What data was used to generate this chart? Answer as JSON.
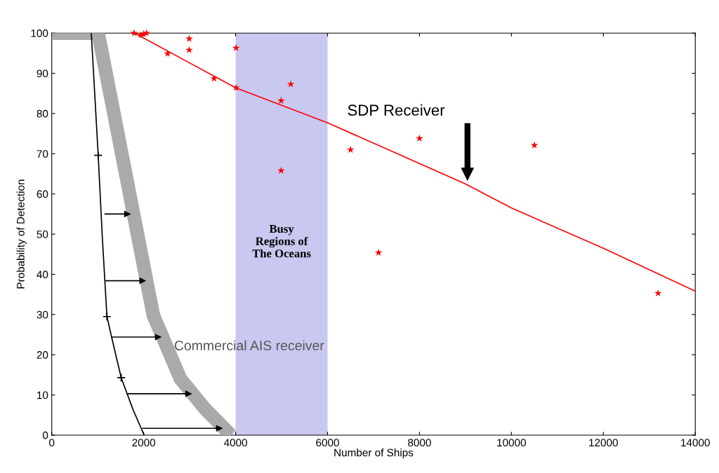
{
  "chart_data": {
    "type": "line",
    "xlabel": "Number of Ships",
    "ylabel": "Probability of Detection",
    "xlim": [
      0,
      14000
    ],
    "ylim": [
      0,
      100
    ],
    "xticks": [
      0,
      2000,
      4000,
      6000,
      8000,
      10000,
      12000,
      14000
    ],
    "yticks": [
      0,
      10,
      20,
      30,
      40,
      50,
      60,
      70,
      80,
      90,
      100
    ],
    "grid": false,
    "series": [
      {
        "color": "#aaaaaa",
        "x": [
          0,
          1010,
          2210,
          2800,
          3330,
          3900
        ],
        "values": [
          100,
          100,
          29.8,
          14,
          6.6,
          0
        ]
      },
      {
        "type": "line",
        "color": "#000000",
        "x": [
          860,
          1010,
          1100,
          1200,
          1330,
          1510,
          1770,
          2010
        ],
        "values": [
          100,
          69.6,
          49.2,
          29.5,
          23,
          14.3,
          6.3,
          0
        ]
      },
      {
        "type": "scatter",
        "color": "#000000",
        "marker": "cross",
        "x": [
          1010,
          1200,
          1510
        ],
        "values": [
          69.6,
          29.5,
          14.3
        ]
      },
      {
        "type": "line",
        "color": "#ff0000",
        "x": [
          1800,
          4000,
          6000,
          9000,
          10000,
          12000,
          14000
        ],
        "values": [
          100,
          86.4,
          77.7,
          62.5,
          56.5,
          46.5,
          35.8
        ]
      },
      {
        "type": "scatter",
        "color": "#ff0000",
        "marker": "star",
        "x": [
          1790,
          1940,
          2000,
          2060,
          2520,
          2990,
          2990,
          3530,
          4010,
          4010,
          5200,
          4990,
          4990,
          6500,
          8000,
          7110,
          10500,
          13190
        ],
        "values": [
          100,
          99.5,
          99.8,
          100,
          94.9,
          98.6,
          95.8,
          88.7,
          96.3,
          86.4,
          87.3,
          83.2,
          65.8,
          71.0,
          73.8,
          45.4,
          72.1,
          35.3
        ]
      },
      {
        "type": "line",
        "color": "#000000",
        "x": [
          1160,
          1650
        ],
        "values": [
          55,
          55
        ]
      },
      {
        "type": "line",
        "color": "#000000",
        "x": [
          1180,
          1980
        ],
        "values": [
          38.4,
          38.4
        ]
      },
      {
        "type": "line",
        "color": "#000000",
        "x": [
          1300,
          2320
        ],
        "values": [
          24.4,
          24.4
        ]
      },
      {
        "type": "line",
        "color": "#000000",
        "x": [
          1650,
          2980
        ],
        "values": [
          10.3,
          10.3
        ]
      },
      {
        "type": "line",
        "color": "#000000",
        "x": [
          1980,
          3650
        ],
        "values": [
          1.7,
          1.7
        ]
      }
    ],
    "bands": [
      {
        "axis": "x",
        "from": 4000,
        "to": 6000,
        "label": "Busy\nRegions of\nThe Oceans",
        "color": "#c8c8f0"
      }
    ],
    "annotations": [
      "SDP Receiver",
      "Commercial AIS receiver"
    ]
  }
}
